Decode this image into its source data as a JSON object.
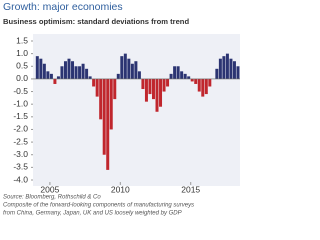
{
  "chart_data": {
    "type": "bar",
    "title": "Growth: major economies",
    "subtitle": "Business optimism: standard deviations from trend",
    "notes": [
      "Source: Bloomberg, Rothschild & Co",
      "Composite of the forward-looking components of manufacturing surveys",
      "from China, Germany, Japan, UK and US loosely weighted by GDP"
    ],
    "x": [
      2004.0,
      2004.25,
      2004.5,
      2004.75,
      2005.0,
      2005.25,
      2005.5,
      2005.75,
      2006.0,
      2006.25,
      2006.5,
      2006.75,
      2007.0,
      2007.25,
      2007.5,
      2007.75,
      2008.0,
      2008.25,
      2008.5,
      2008.75,
      2009.0,
      2009.25,
      2009.5,
      2009.75,
      2010.0,
      2010.25,
      2010.5,
      2010.75,
      2011.0,
      2011.25,
      2011.5,
      2011.75,
      2012.0,
      2012.25,
      2012.5,
      2012.75,
      2013.0,
      2013.25,
      2013.5,
      2013.75,
      2014.0,
      2014.25,
      2014.5,
      2014.75,
      2015.0,
      2015.25,
      2015.5,
      2015.75,
      2016.0,
      2016.25,
      2016.5,
      2016.75,
      2017.0,
      2017.25,
      2017.5,
      2017.75,
      2018.0,
      2018.25
    ],
    "values": [
      0.9,
      0.8,
      0.6,
      0.3,
      0.2,
      -0.2,
      0.1,
      0.5,
      0.7,
      0.8,
      0.7,
      0.5,
      0.5,
      0.6,
      0.4,
      0.1,
      -0.3,
      -0.7,
      -1.6,
      -3.0,
      -3.6,
      -2.0,
      -0.8,
      0.2,
      0.9,
      1.0,
      0.8,
      0.6,
      0.7,
      0.3,
      -0.4,
      -0.9,
      -0.6,
      -0.8,
      -1.3,
      -1.1,
      -0.5,
      -0.3,
      0.2,
      0.5,
      0.5,
      0.3,
      0.2,
      0.1,
      -0.1,
      -0.2,
      -0.5,
      -0.7,
      -0.6,
      -0.3,
      0.0,
      0.4,
      0.8,
      0.9,
      1.0,
      0.8,
      0.7,
      0.5
    ],
    "positive_color": "#2b3472",
    "negative_color": "#c0262d",
    "xlim": [
      2003.8,
      2018.5
    ],
    "xticks": [
      2005,
      2010,
      2015
    ],
    "ylim": [
      -4,
      1.5
    ],
    "yticks": [
      {
        "value": 1.5,
        "label": "1.5"
      },
      {
        "value": 1,
        "label": "1.0"
      },
      {
        "value": 0.5,
        "label": "0.5"
      },
      {
        "value": 0,
        "label": "0.0"
      },
      {
        "value": -0.5,
        "label": "-0.5"
      },
      {
        "value": -1,
        "label": "-1.0"
      },
      {
        "value": -1.5,
        "label": "-1.5"
      },
      {
        "value": -2,
        "label": "-2.0"
      },
      {
        "value": -2.5,
        "label": "-2.5"
      },
      {
        "value": -3,
        "label": "-3.0"
      },
      {
        "value": -3.5,
        "label": "-3.5"
      },
      {
        "value": -4,
        "label": "-4.0"
      }
    ]
  }
}
